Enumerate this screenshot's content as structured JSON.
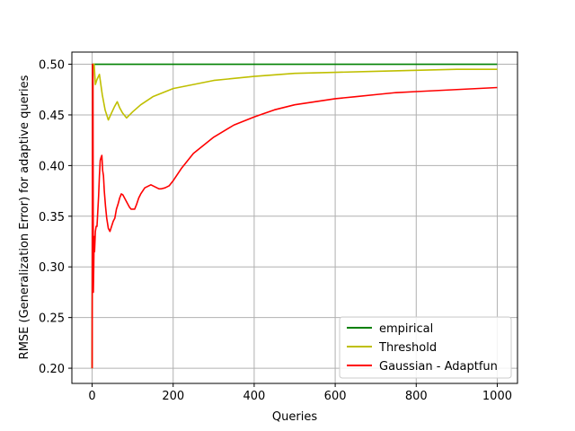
{
  "chart_data": {
    "type": "line",
    "title": "",
    "xlabel": "Queries",
    "ylabel": "RMSE (Generalization Error) for adaptive queries",
    "xlim": [
      -50,
      1050
    ],
    "ylim": [
      0.185,
      0.512
    ],
    "xticks": [
      0,
      200,
      400,
      600,
      800,
      1000
    ],
    "yticks": [
      0.2,
      0.25,
      0.3,
      0.35,
      0.4,
      0.45,
      0.5
    ],
    "xtick_labels": [
      "0",
      "200",
      "400",
      "600",
      "800",
      "1000"
    ],
    "ytick_labels": [
      "0.20",
      "0.25",
      "0.30",
      "0.35",
      "0.40",
      "0.45",
      "0.50"
    ],
    "grid": true,
    "legend_position": "lower-right",
    "series": [
      {
        "name": "empirical",
        "color": "#008000",
        "x": [
          0,
          1,
          3,
          1000
        ],
        "y": [
          0.2,
          0.5,
          0.5,
          0.5
        ]
      },
      {
        "name": "Threshold",
        "color": "#bfbf00",
        "x": [
          0,
          2,
          5,
          8,
          12,
          18,
          25,
          32,
          40,
          48,
          55,
          62,
          68,
          75,
          85,
          100,
          120,
          150,
          200,
          300,
          400,
          500,
          600,
          700,
          800,
          900,
          1000
        ],
        "y": [
          0.2,
          0.5,
          0.5,
          0.48,
          0.485,
          0.49,
          0.47,
          0.455,
          0.445,
          0.452,
          0.458,
          0.463,
          0.457,
          0.452,
          0.447,
          0.453,
          0.46,
          0.468,
          0.476,
          0.484,
          0.488,
          0.491,
          0.492,
          0.493,
          0.494,
          0.495,
          0.495
        ]
      },
      {
        "name": "Gaussian - Adaptfun",
        "color": "#ff0000",
        "x": [
          0,
          1,
          2,
          3,
          4,
          5,
          6,
          8,
          10,
          12,
          14,
          16,
          18,
          20,
          22,
          24,
          26,
          28,
          30,
          33,
          36,
          40,
          44,
          48,
          52,
          56,
          60,
          64,
          68,
          72,
          76,
          80,
          84,
          88,
          92,
          96,
          100,
          105,
          110,
          115,
          120,
          125,
          130,
          135,
          140,
          145,
          150,
          155,
          160,
          165,
          170,
          180,
          190,
          200,
          220,
          250,
          300,
          350,
          400,
          450,
          500,
          550,
          600,
          650,
          700,
          750,
          800,
          850,
          900,
          950,
          1000
        ],
        "y": [
          0.2,
          0.5,
          0.49,
          0.275,
          0.3,
          0.33,
          0.315,
          0.335,
          0.34,
          0.34,
          0.355,
          0.37,
          0.39,
          0.405,
          0.408,
          0.41,
          0.395,
          0.39,
          0.375,
          0.36,
          0.348,
          0.338,
          0.335,
          0.34,
          0.345,
          0.348,
          0.357,
          0.362,
          0.368,
          0.372,
          0.371,
          0.368,
          0.365,
          0.362,
          0.359,
          0.357,
          0.357,
          0.357,
          0.362,
          0.368,
          0.372,
          0.375,
          0.378,
          0.379,
          0.38,
          0.381,
          0.38,
          0.379,
          0.378,
          0.377,
          0.377,
          0.378,
          0.38,
          0.385,
          0.397,
          0.412,
          0.428,
          0.44,
          0.448,
          0.455,
          0.46,
          0.463,
          0.466,
          0.468,
          0.47,
          0.472,
          0.473,
          0.474,
          0.475,
          0.476,
          0.477
        ]
      }
    ]
  }
}
